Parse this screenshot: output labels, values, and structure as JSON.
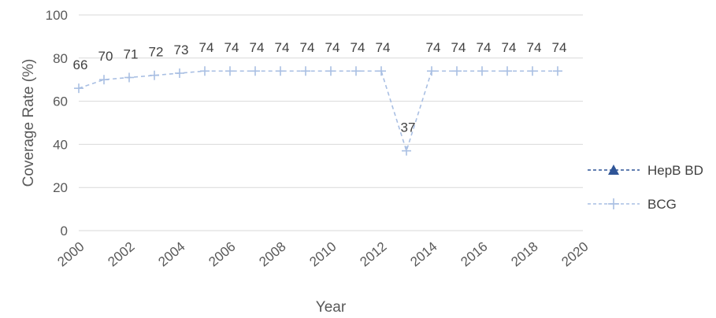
{
  "chart_data": {
    "type": "line",
    "title": "",
    "xlabel": "Year",
    "ylabel": "Coverage Rate (%)",
    "xlim": [
      2000,
      2020
    ],
    "ylim": [
      0,
      100
    ],
    "x_ticks": [
      "2000",
      "2002",
      "2004",
      "2006",
      "2008",
      "2010",
      "2012",
      "2014",
      "2016",
      "2018",
      "2020"
    ],
    "y_ticks": [
      "0",
      "20",
      "40",
      "60",
      "80",
      "100"
    ],
    "grid": "horizontal",
    "legend_position": "right",
    "series": [
      {
        "name": "HepB BD",
        "color": "#2f5597",
        "marker": "triangle",
        "line_style": "dashed",
        "x": [],
        "values": []
      },
      {
        "name": "BCG",
        "color": "#a9bfe3",
        "marker": "plus",
        "line_style": "dashed",
        "x": [
          2000,
          2001,
          2002,
          2003,
          2004,
          2005,
          2006,
          2007,
          2008,
          2009,
          2010,
          2011,
          2012,
          2013,
          2014,
          2015,
          2016,
          2017,
          2018,
          2019
        ],
        "values": [
          66,
          70,
          71,
          72,
          73,
          74,
          74,
          74,
          74,
          74,
          74,
          74,
          74,
          37,
          74,
          74,
          74,
          74,
          74,
          74
        ],
        "data_labels": [
          "66",
          "70",
          "71",
          "72",
          "73",
          "74",
          "74",
          "74",
          "74",
          "74",
          "74",
          "74",
          "74",
          "37",
          "74",
          "74",
          "74",
          "74",
          "74",
          "74"
        ]
      }
    ]
  }
}
